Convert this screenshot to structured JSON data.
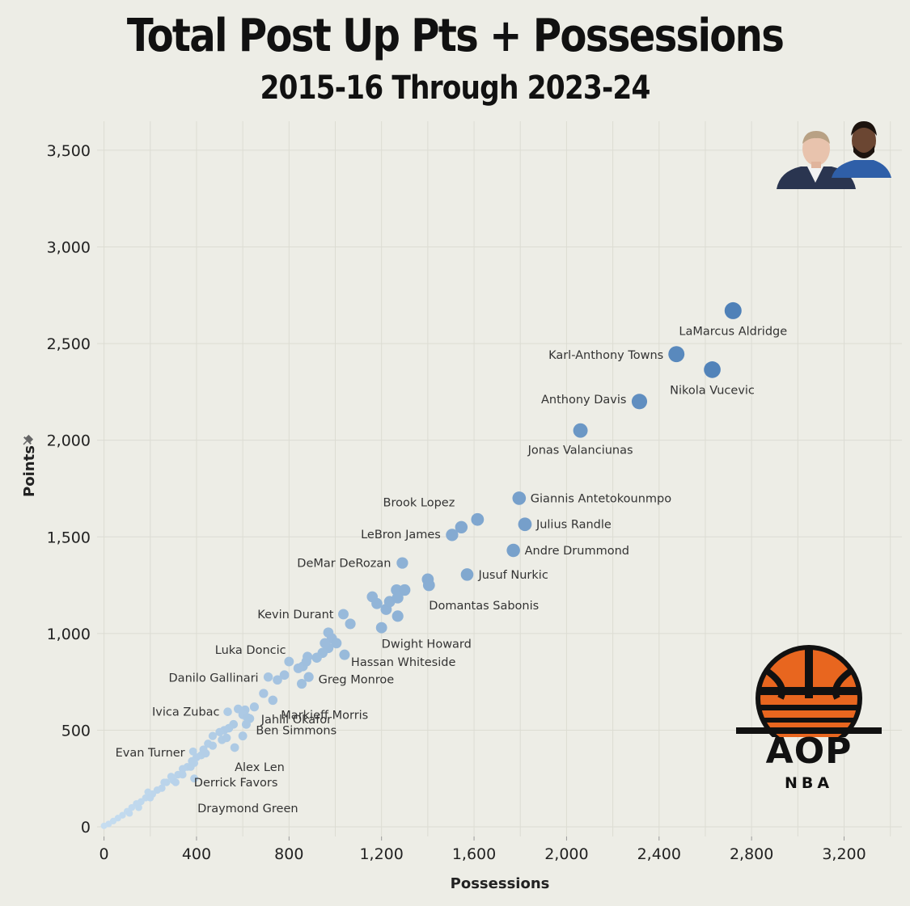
{
  "chart_data": {
    "type": "scatter",
    "title": "Total Post Up Pts + Possessions",
    "subtitle": "2015-16 Through 2023-24",
    "xlabel": "Possessions",
    "ylabel": "Points",
    "xlim": [
      -30,
      3450
    ],
    "ylim": [
      -50,
      3650
    ],
    "x_ticks": [
      0,
      400,
      800,
      1200,
      1600,
      2000,
      2400,
      2800,
      3200
    ],
    "x_tick_labels": [
      "0",
      "400",
      "800",
      "1,200",
      "1,600",
      "2,000",
      "2,400",
      "2,800",
      "3,200"
    ],
    "y_ticks": [
      0,
      500,
      1000,
      1500,
      2000,
      2500,
      3000,
      3500
    ],
    "y_tick_labels": [
      "0",
      "500",
      "1,000",
      "1,500",
      "2,000",
      "2,500",
      "3,000",
      "3,500"
    ],
    "grid": true,
    "labeled_points": [
      {
        "name": "LaMarcus Aldridge",
        "x": 2720,
        "y": 2670
      },
      {
        "name": "Karl-Anthony Towns",
        "x": 2475,
        "y": 2445
      },
      {
        "name": "Nikola Vucevic",
        "x": 2630,
        "y": 2365
      },
      {
        "name": "Anthony Davis",
        "x": 2315,
        "y": 2200
      },
      {
        "name": "Jonas Valanciunas",
        "x": 2060,
        "y": 2050
      },
      {
        "name": "Giannis Antetokounmpo",
        "x": 1795,
        "y": 1700
      },
      {
        "name": "Brook Lopez",
        "x": 1615,
        "y": 1590
      },
      {
        "name": "Julius Randle",
        "x": 1820,
        "y": 1565
      },
      {
        "name": "LeBron James",
        "x": 1505,
        "y": 1510
      },
      {
        "name": "Andre Drummond",
        "x": 1770,
        "y": 1430
      },
      {
        "name": "DeMar DeRozan",
        "x": 1290,
        "y": 1365
      },
      {
        "name": "Jusuf Nurkic",
        "x": 1570,
        "y": 1305
      },
      {
        "name": "Domantas Sabonis",
        "x": 1405,
        "y": 1250
      },
      {
        "name": "Kevin Durant",
        "x": 1035,
        "y": 1100
      },
      {
        "name": "Dwight Howard",
        "x": 1200,
        "y": 1030
      },
      {
        "name": "Luka Doncic",
        "x": 955,
        "y": 950
      },
      {
        "name": "Hassan Whiteside",
        "x": 1040,
        "y": 890
      },
      {
        "name": "Danilo Gallinari",
        "x": 710,
        "y": 775
      },
      {
        "name": "Greg Monroe",
        "x": 885,
        "y": 775
      },
      {
        "name": "Markieff Morris",
        "x": 730,
        "y": 655
      },
      {
        "name": "Jahlil Okafor",
        "x": 630,
        "y": 560
      },
      {
        "name": "Ivica Zubac",
        "x": 535,
        "y": 595
      },
      {
        "name": "Ben Simmons",
        "x": 615,
        "y": 530
      },
      {
        "name": "Alex Len",
        "x": 565,
        "y": 410
      },
      {
        "name": "Evan Turner",
        "x": 385,
        "y": 390
      },
      {
        "name": "Derrick Favors",
        "x": 375,
        "y": 310
      },
      {
        "name": "Draymond Green",
        "x": 390,
        "y": 250
      }
    ],
    "other_points": [
      {
        "x": 1545,
        "y": 1550
      },
      {
        "x": 1160,
        "y": 1190
      },
      {
        "x": 1180,
        "y": 1155
      },
      {
        "x": 1220,
        "y": 1125
      },
      {
        "x": 1235,
        "y": 1165
      },
      {
        "x": 1270,
        "y": 1185
      },
      {
        "x": 1265,
        "y": 1225
      },
      {
        "x": 1300,
        "y": 1225
      },
      {
        "x": 1400,
        "y": 1280
      },
      {
        "x": 1270,
        "y": 1090
      },
      {
        "x": 1065,
        "y": 1050
      },
      {
        "x": 970,
        "y": 1005
      },
      {
        "x": 985,
        "y": 975
      },
      {
        "x": 1005,
        "y": 950
      },
      {
        "x": 970,
        "y": 925
      },
      {
        "x": 945,
        "y": 900
      },
      {
        "x": 920,
        "y": 875
      },
      {
        "x": 880,
        "y": 880
      },
      {
        "x": 860,
        "y": 830
      },
      {
        "x": 875,
        "y": 855
      },
      {
        "x": 840,
        "y": 820
      },
      {
        "x": 800,
        "y": 855
      },
      {
        "x": 780,
        "y": 785
      },
      {
        "x": 750,
        "y": 760
      },
      {
        "x": 855,
        "y": 740
      },
      {
        "x": 690,
        "y": 690
      },
      {
        "x": 650,
        "y": 620
      },
      {
        "x": 610,
        "y": 605
      },
      {
        "x": 580,
        "y": 610
      },
      {
        "x": 600,
        "y": 580
      },
      {
        "x": 620,
        "y": 565
      },
      {
        "x": 560,
        "y": 530
      },
      {
        "x": 540,
        "y": 510
      },
      {
        "x": 520,
        "y": 500
      },
      {
        "x": 500,
        "y": 490
      },
      {
        "x": 510,
        "y": 450
      },
      {
        "x": 470,
        "y": 470
      },
      {
        "x": 450,
        "y": 430
      },
      {
        "x": 430,
        "y": 400
      },
      {
        "x": 470,
        "y": 420
      },
      {
        "x": 420,
        "y": 370
      },
      {
        "x": 400,
        "y": 360
      },
      {
        "x": 390,
        "y": 330
      },
      {
        "x": 360,
        "y": 310
      },
      {
        "x": 340,
        "y": 300
      },
      {
        "x": 320,
        "y": 270
      },
      {
        "x": 300,
        "y": 240
      },
      {
        "x": 290,
        "y": 260
      },
      {
        "x": 270,
        "y": 230
      },
      {
        "x": 250,
        "y": 200
      },
      {
        "x": 230,
        "y": 190
      },
      {
        "x": 210,
        "y": 170
      },
      {
        "x": 190,
        "y": 180
      },
      {
        "x": 180,
        "y": 150
      },
      {
        "x": 160,
        "y": 130
      },
      {
        "x": 140,
        "y": 120
      },
      {
        "x": 120,
        "y": 100
      },
      {
        "x": 100,
        "y": 80
      },
      {
        "x": 80,
        "y": 60
      },
      {
        "x": 60,
        "y": 45
      },
      {
        "x": 40,
        "y": 30
      },
      {
        "x": 20,
        "y": 15
      },
      {
        "x": 0,
        "y": 5
      },
      {
        "x": 340,
        "y": 270
      },
      {
        "x": 310,
        "y": 230
      },
      {
        "x": 260,
        "y": 230
      },
      {
        "x": 200,
        "y": 150
      },
      {
        "x": 150,
        "y": 100
      },
      {
        "x": 110,
        "y": 70
      },
      {
        "x": 380,
        "y": 340
      },
      {
        "x": 440,
        "y": 380
      },
      {
        "x": 530,
        "y": 460
      },
      {
        "x": 600,
        "y": 470
      }
    ],
    "marker_color_scale": [
      "#c6ddf0",
      "#4f81b8"
    ]
  },
  "logo": {
    "text": "AOP",
    "subtext": "NBA"
  },
  "players_image": [
    "player-headshot-1",
    "player-headshot-2"
  ]
}
